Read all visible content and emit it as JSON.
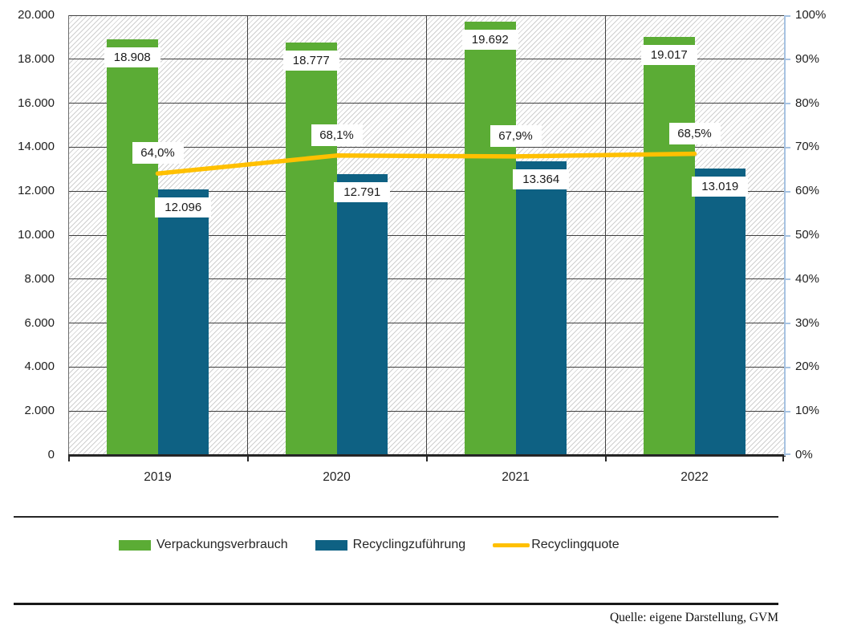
{
  "chart_data": {
    "type": "bar+line",
    "categories": [
      "2019",
      "2020",
      "2021",
      "2022"
    ],
    "series": [
      {
        "id": "verpackungsverbrauch",
        "name": "Verpackungsverbrauch",
        "type": "bar",
        "color": "#5BAC35",
        "values": [
          18908,
          18777,
          19692,
          19017
        ],
        "labels": [
          "18.908",
          "18.777",
          "19.692",
          "19.017"
        ]
      },
      {
        "id": "recyclingzufuehrung",
        "name": "Recyclingzuführung",
        "type": "bar",
        "color": "#0E6183",
        "values": [
          12096,
          12791,
          13364,
          13019
        ],
        "labels": [
          "12.096",
          "12.791",
          "13.364",
          "13.019"
        ]
      },
      {
        "id": "recyclingquote",
        "name": "Recyclingquote",
        "type": "line",
        "axis": "right",
        "color": "#FFC000",
        "values": [
          64.0,
          68.1,
          67.9,
          68.5
        ],
        "labels": [
          "64,0%",
          "68,1%",
          "67,9%",
          "68,5%"
        ]
      }
    ],
    "left_axis": {
      "min": 0,
      "max": 20000,
      "step": 2000,
      "tick_labels": [
        "0",
        "2.000",
        "4.000",
        "6.000",
        "8.000",
        "10.000",
        "12.000",
        "14.000",
        "16.000",
        "18.000",
        "20.000"
      ]
    },
    "right_axis": {
      "min": 0,
      "max": 100,
      "step": 10,
      "color": "#A6C2E1",
      "tick_labels": [
        "0%",
        "10%",
        "20%",
        "30%",
        "40%",
        "50%",
        "60%",
        "70%",
        "80%",
        "90%",
        "100%"
      ]
    },
    "grid": "horizontal and vertical category boundaries, dark gray on hatched background",
    "legend_position": "bottom"
  },
  "legend": {
    "items": [
      {
        "label": "Verpackungsverbrauch",
        "color": "#5BAC35",
        "swatch": "bar"
      },
      {
        "label": "Recyclingzuführung",
        "color": "#0E6183",
        "swatch": "bar"
      },
      {
        "label": "Recyclingquote",
        "color": "#FFC000",
        "swatch": "line"
      }
    ]
  },
  "footer": {
    "source": "Quelle: eigene Darstellung, GVM"
  }
}
